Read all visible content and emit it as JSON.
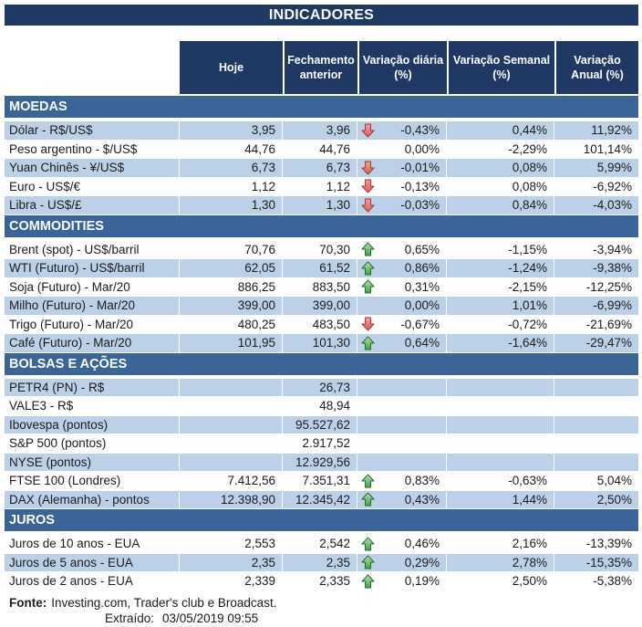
{
  "title": "INDICADORES",
  "columns": [
    "Hoje",
    "Fechamento anterior",
    "Variação diária (%)",
    "Variação Semanal (%)",
    "Variação Anual (%)"
  ],
  "sections": [
    {
      "name": "MOEDAS",
      "rows": [
        {
          "label": "Dólar - R$/US$",
          "hoje": "3,95",
          "fechamento": "3,96",
          "arrow": "down",
          "var_diaria": "-0,43%",
          "var_semanal": "0,44%",
          "var_anual": "11,92%"
        },
        {
          "label": "Peso argentino - $/US$",
          "hoje": "44,76",
          "fechamento": "44,76",
          "arrow": "none",
          "var_diaria": "0,00%",
          "var_semanal": "-2,29%",
          "var_anual": "101,14%"
        },
        {
          "label": "Yuan Chinês - ¥/US$",
          "hoje": "6,73",
          "fechamento": "6,73",
          "arrow": "down",
          "var_diaria": "-0,01%",
          "var_semanal": "0,08%",
          "var_anual": "5,99%"
        },
        {
          "label": "Euro - US$/€",
          "hoje": "1,12",
          "fechamento": "1,12",
          "arrow": "down",
          "var_diaria": "-0,13%",
          "var_semanal": "0,08%",
          "var_anual": "-6,92%"
        },
        {
          "label": "Libra - US$/£",
          "hoje": "1,30",
          "fechamento": "1,30",
          "arrow": "down",
          "var_diaria": "-0,03%",
          "var_semanal": "0,84%",
          "var_anual": "-4,03%"
        }
      ]
    },
    {
      "name": "COMMODITIES",
      "rows": [
        {
          "label": "Brent (spot) - US$/barril",
          "hoje": "70,76",
          "fechamento": "70,30",
          "arrow": "up",
          "var_diaria": "0,65%",
          "var_semanal": "-1,15%",
          "var_anual": "-3,94%"
        },
        {
          "label": "WTI (Futuro) - US$/barril",
          "hoje": "62,05",
          "fechamento": "61,52",
          "arrow": "up",
          "var_diaria": "0,86%",
          "var_semanal": "-1,24%",
          "var_anual": "-9,38%"
        },
        {
          "label": "Soja (Futuro) - Mar/20",
          "hoje": "886,25",
          "fechamento": "883,50",
          "arrow": "up",
          "var_diaria": "0,31%",
          "var_semanal": "-2,15%",
          "var_anual": "-12,25%"
        },
        {
          "label": "Milho (Futuro) - Mar/20",
          "hoje": "399,00",
          "fechamento": "399,00",
          "arrow": "none",
          "var_diaria": "0,00%",
          "var_semanal": "1,01%",
          "var_anual": "-6,99%"
        },
        {
          "label": "Trigo (Futuro) - Mar/20",
          "hoje": "480,25",
          "fechamento": "483,50",
          "arrow": "down",
          "var_diaria": "-0,67%",
          "var_semanal": "-0,72%",
          "var_anual": "-21,69%"
        },
        {
          "label": "Café (Futuro) - Mar/20",
          "hoje": "101,95",
          "fechamento": "101,30",
          "arrow": "up",
          "var_diaria": "0,64%",
          "var_semanal": "-1,64%",
          "var_anual": "-29,47%"
        }
      ]
    },
    {
      "name": "BOLSAS E AÇÕES",
      "rows": [
        {
          "label": "PETR4 (PN) - R$",
          "hoje": "",
          "fechamento": "26,73",
          "arrow": "none",
          "var_diaria": "",
          "var_semanal": "",
          "var_anual": ""
        },
        {
          "label": "VALE3 - R$",
          "hoje": "",
          "fechamento": "48,94",
          "arrow": "none",
          "var_diaria": "",
          "var_semanal": "",
          "var_anual": ""
        },
        {
          "label": "Ibovespa (pontos)",
          "hoje": "",
          "fechamento": "95.527,62",
          "arrow": "none",
          "var_diaria": "",
          "var_semanal": "",
          "var_anual": ""
        },
        {
          "label": "S&P 500 (pontos)",
          "hoje": "",
          "fechamento": "2.917,52",
          "arrow": "none",
          "var_diaria": "",
          "var_semanal": "",
          "var_anual": ""
        },
        {
          "label": "NYSE (pontos)",
          "hoje": "",
          "fechamento": "12.929,56",
          "arrow": "none",
          "var_diaria": "",
          "var_semanal": "",
          "var_anual": ""
        },
        {
          "label": "FTSE 100 (Londres)",
          "hoje": "7.412,56",
          "fechamento": "7.351,31",
          "arrow": "up",
          "var_diaria": "0,83%",
          "var_semanal": "-0,63%",
          "var_anual": "5,04%"
        },
        {
          "label": "DAX (Alemanha) - pontos",
          "hoje": "12.398,90",
          "fechamento": "12.345,42",
          "arrow": "up",
          "var_diaria": "0,43%",
          "var_semanal": "1,44%",
          "var_anual": "2,50%"
        }
      ]
    },
    {
      "name": "JUROS",
      "rows": [
        {
          "label": "Juros de 10 anos - EUA",
          "hoje": "2,553",
          "fechamento": "2,542",
          "arrow": "up",
          "var_diaria": "0,46%",
          "var_semanal": "2,16%",
          "var_anual": "-13,39%"
        },
        {
          "label": "Juros de 5 anos - EUA",
          "hoje": "2,35",
          "fechamento": "2,35",
          "arrow": "up",
          "var_diaria": "0,29%",
          "var_semanal": "2,78%",
          "var_anual": "-15,35%"
        },
        {
          "label": "Juros de 2 anos - EUA",
          "hoje": "2,339",
          "fechamento": "2,335",
          "arrow": "up",
          "var_diaria": "0,19%",
          "var_semanal": "2,50%",
          "var_anual": "-5,38%"
        }
      ]
    }
  ],
  "footer": {
    "fonte_label": "Fonte:",
    "fonte_text": "Investing.com, Trader's club e Broadcast.",
    "extraido_label": "Extraído:",
    "extraido_value": "03/05/2019 09:55"
  },
  "colors": {
    "header_navy": "#1F3864",
    "section_blue": "#3B6598",
    "row_light_blue": "#BCD1E8",
    "arrow_up_green": "#3FA047",
    "arrow_up_border": "#27642C",
    "arrow_down_red": "#E05A55",
    "arrow_down_border": "#9C3732"
  }
}
